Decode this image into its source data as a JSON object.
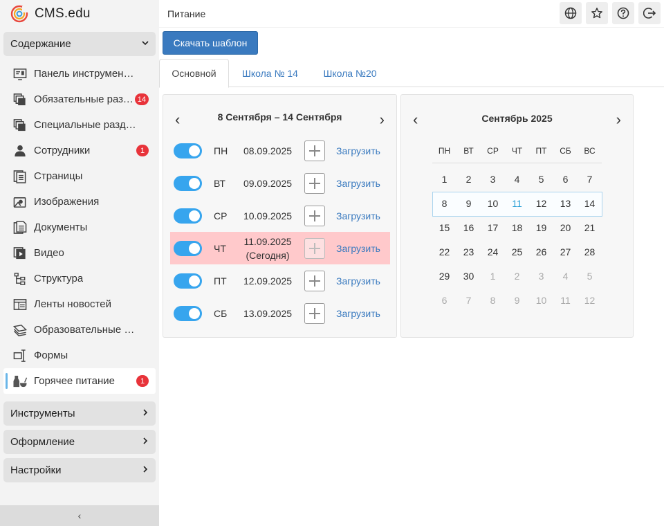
{
  "app": {
    "name": "CMS.edu"
  },
  "sidebar": {
    "sections": {
      "content": "Содержание",
      "tools": "Инструменты",
      "design": "Оформление",
      "settings": "Настройки"
    },
    "items": [
      {
        "label": "Панель инструментов",
        "icon": "dashboard-icon",
        "badge": ""
      },
      {
        "label": "Обязательные разделы",
        "icon": "layers-icon",
        "badge": "14"
      },
      {
        "label": "Специальные разделы",
        "icon": "layers-icon",
        "badge": ""
      },
      {
        "label": "Сотрудники",
        "icon": "user-icon",
        "badge": "1"
      },
      {
        "label": "Страницы",
        "icon": "pages-icon",
        "badge": ""
      },
      {
        "label": "Изображения",
        "icon": "images-icon",
        "badge": ""
      },
      {
        "label": "Документы",
        "icon": "document-icon",
        "badge": ""
      },
      {
        "label": "Видео",
        "icon": "video-icon",
        "badge": ""
      },
      {
        "label": "Структура",
        "icon": "structure-icon",
        "badge": ""
      },
      {
        "label": "Ленты новостей",
        "icon": "news-icon",
        "badge": ""
      },
      {
        "label": "Образовательные программы",
        "icon": "education-icon",
        "badge": ""
      },
      {
        "label": "Формы",
        "icon": "forms-icon",
        "badge": ""
      },
      {
        "label": "Горячее питание",
        "icon": "food-icon",
        "badge": "1",
        "active": true
      }
    ],
    "collapse_glyph": "‹"
  },
  "header": {
    "title": "Питание",
    "icons": [
      "globe-icon",
      "star-icon",
      "help-icon",
      "logout-icon"
    ]
  },
  "toolbar": {
    "download_label": "Скачать шаблон"
  },
  "tabs": [
    {
      "label": "Основной",
      "active": true
    },
    {
      "label": "Школа № 14",
      "active": false
    },
    {
      "label": "Школа №20",
      "active": false
    }
  ],
  "week": {
    "range": "8 Сентября – 14 Сентября",
    "prev": "‹",
    "next": "›",
    "days": [
      {
        "name": "ПН",
        "date": "08.09.2025",
        "note": "",
        "enabled": true,
        "today": false,
        "upload": "Загрузить"
      },
      {
        "name": "ВТ",
        "date": "09.09.2025",
        "note": "",
        "enabled": true,
        "today": false,
        "upload": "Загрузить"
      },
      {
        "name": "СР",
        "date": "10.09.2025",
        "note": "",
        "enabled": true,
        "today": false,
        "upload": "Загрузить"
      },
      {
        "name": "ЧТ",
        "date": "11.09.2025",
        "note": "(Сегодня)",
        "enabled": true,
        "today": true,
        "upload": "Загрузить"
      },
      {
        "name": "ПТ",
        "date": "12.09.2025",
        "note": "",
        "enabled": true,
        "today": false,
        "upload": "Загрузить"
      },
      {
        "name": "СБ",
        "date": "13.09.2025",
        "note": "",
        "enabled": true,
        "today": false,
        "upload": "Загрузить"
      }
    ]
  },
  "calendar": {
    "title": "Сентябрь 2025",
    "prev": "‹",
    "next": "›",
    "weekdays": [
      "ПН",
      "ВТ",
      "СР",
      "ЧТ",
      "ПТ",
      "СБ",
      "ВС"
    ],
    "weeks": [
      [
        "1",
        "2",
        "3",
        "4",
        "5",
        "6",
        "7"
      ],
      [
        "8",
        "9",
        "10",
        "11",
        "12",
        "13",
        "14"
      ],
      [
        "15",
        "16",
        "17",
        "18",
        "19",
        "20",
        "21"
      ],
      [
        "22",
        "23",
        "24",
        "25",
        "26",
        "27",
        "28"
      ],
      [
        "29",
        "30",
        "1",
        "2",
        "3",
        "4",
        "5"
      ],
      [
        "6",
        "7",
        "8",
        "9",
        "10",
        "11",
        "12"
      ]
    ],
    "today": "11",
    "colors": {
      "accent": "#3a7abf",
      "toggle": "#37a5ee",
      "today_row": "#ffc9cb",
      "badge": "#e8333a"
    }
  }
}
